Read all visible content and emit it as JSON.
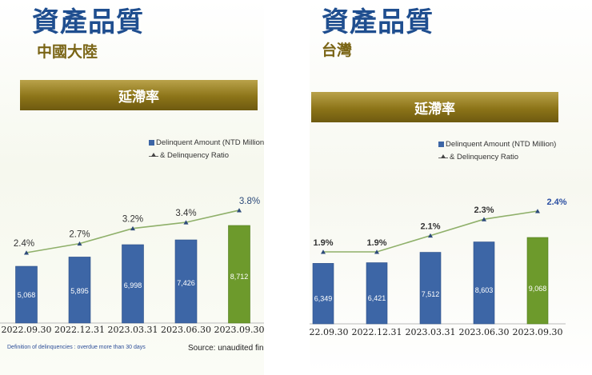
{
  "left": {
    "title": "資產品質",
    "subtitle": "中國大陸",
    "banner": "延滯率",
    "legend": {
      "bar": "Delinquent Amount (NTD Million",
      "line": "& Delinquency Ratio"
    },
    "footnote_left": "Definition of delinquencies : overdue more than 30 days",
    "footnote_right": "Source: unaudited fin"
  },
  "right": {
    "title": "資產品質",
    "subtitle": "台灣",
    "banner": "延滯率",
    "legend": {
      "bar": "Delinquent Amount (NTD Million)",
      "line": "& Delinquency Ratio"
    }
  },
  "colors": {
    "bar": "#3d66a6",
    "bar_highlight": "#6d9a2c",
    "line": "#8fb06a",
    "title": "#1f4e8f",
    "banner": "#8c7418"
  },
  "chart_data": [
    {
      "type": "bar",
      "region": "中國大陸",
      "categories": [
        "2022.09.30",
        "2022.12.31",
        "2023.03.31",
        "2023.06.30",
        "2023.09.30"
      ],
      "series": [
        {
          "name": "Delinquent Amount (NTD Million",
          "type": "bar",
          "values": [
            5068,
            5895,
            6998,
            7426,
            8712
          ],
          "labels": [
            "5,068",
            "5,895",
            "6,998",
            "7,426",
            "8,712"
          ]
        },
        {
          "name": "& Delinquency Ratio",
          "type": "line",
          "values": [
            2.4,
            2.7,
            3.2,
            3.4,
            3.8
          ],
          "labels": [
            "2.4%",
            "2.7%",
            "3.2%",
            "3.4%",
            "3.8%"
          ]
        }
      ],
      "highlight_last": true
    },
    {
      "type": "bar",
      "region": "台灣",
      "categories": [
        "2022.09.30",
        "2022.12.31",
        "2023.03.31",
        "2023.06.30",
        "2023.09.30"
      ],
      "series": [
        {
          "name": "Delinquent Amount (NTD Million)",
          "type": "bar",
          "values": [
            6349,
            6421,
            7512,
            8603,
            9068
          ],
          "labels": [
            "6,349",
            "6,421",
            "7,512",
            "8,603",
            "9,068"
          ]
        },
        {
          "name": "& Delinquency Ratio",
          "type": "line",
          "values": [
            1.9,
            1.9,
            2.1,
            2.3,
            2.4
          ],
          "labels": [
            "1.9%",
            "1.9%",
            "2.1%",
            "2.3%",
            "2.4%"
          ]
        }
      ],
      "highlight_last": true
    }
  ]
}
